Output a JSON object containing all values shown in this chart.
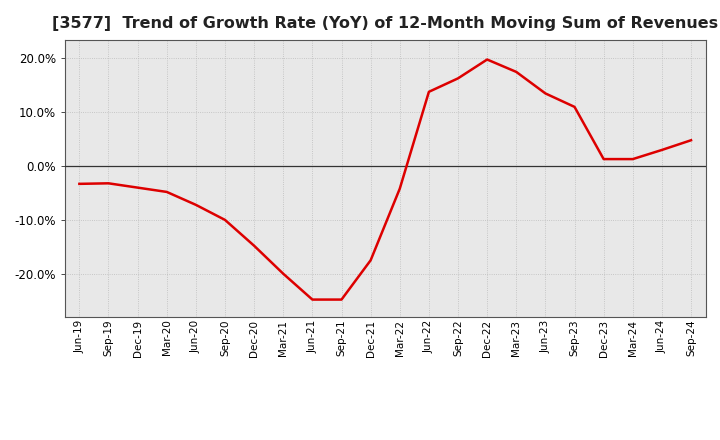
{
  "title": "[3577]  Trend of Growth Rate (YoY) of 12-Month Moving Sum of Revenues",
  "title_fontsize": 11.5,
  "line_color": "#dd0000",
  "line_width": 1.8,
  "background_color": "#ffffff",
  "plot_bg_color": "#e8e8e8",
  "grid_color": "#bbbbbb",
  "ylim": [
    -0.28,
    0.235
  ],
  "yticks": [
    -0.2,
    -0.1,
    0.0,
    0.1,
    0.2
  ],
  "values": [
    -0.033,
    -0.032,
    -0.04,
    -0.048,
    -0.072,
    -0.1,
    -0.148,
    -0.2,
    -0.248,
    -0.248,
    -0.175,
    -0.042,
    0.138,
    0.163,
    0.198,
    0.175,
    0.135,
    0.11,
    0.013,
    0.013,
    0.03,
    0.048
  ],
  "xtick_labels": [
    "Jun-19",
    "Sep-19",
    "Dec-19",
    "Mar-20",
    "Jun-20",
    "Sep-20",
    "Dec-20",
    "Mar-21",
    "Jun-21",
    "Sep-21",
    "Dec-21",
    "Mar-22",
    "Jun-22",
    "Sep-22",
    "Dec-22",
    "Mar-23",
    "Jun-23",
    "Sep-23",
    "Dec-23",
    "Mar-24",
    "Jun-24",
    "Sep-24"
  ]
}
